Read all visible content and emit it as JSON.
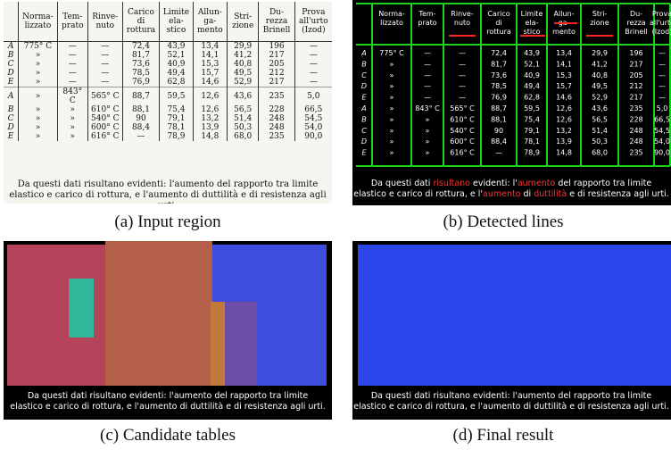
{
  "table": {
    "headers": [
      "",
      "Norma-\nlizzato",
      "Tem-\nprato",
      "Rinve-\nnuto",
      "Carico\ndi\nrottura",
      "Limite\nela-\nstico",
      "Allun-\nga-\nmento",
      "Stri-\nzione",
      "Du-\nrezza\nBrinell",
      "Prova\nall'urto\n(Izod)"
    ],
    "rows": [
      [
        "A",
        "775° C",
        "—",
        "—",
        "72,4",
        "43,9",
        "13,4",
        "29,9",
        "196",
        "—"
      ],
      [
        "B",
        "»",
        "—",
        "—",
        "81,7",
        "52,1",
        "14,1",
        "41,2",
        "217",
        "—"
      ],
      [
        "C",
        "»",
        "—",
        "—",
        "73,6",
        "40,9",
        "15,3",
        "40,8",
        "205",
        "—"
      ],
      [
        "D",
        "»",
        "—",
        "—",
        "78,5",
        "49,4",
        "15,7",
        "49,5",
        "212",
        "—"
      ],
      [
        "E",
        "»",
        "—",
        "—",
        "76,9",
        "62,8",
        "14,6",
        "52,9",
        "217",
        "—"
      ],
      [
        "A",
        "»",
        "843° C",
        "565° C",
        "88,7",
        "59,5",
        "12,6",
        "43,6",
        "235",
        "5,0"
      ],
      [
        "B",
        "»",
        "»",
        "610° C",
        "88,1",
        "75,4",
        "12,6",
        "56,5",
        "228",
        "66,5"
      ],
      [
        "C",
        "»",
        "»",
        "540° C",
        "90",
        "79,1",
        "13,2",
        "51,4",
        "248",
        "54,5"
      ],
      [
        "D",
        "»",
        "»",
        "600° C",
        "88,4",
        "78,1",
        "13,9",
        "50,3",
        "248",
        "54,0"
      ],
      [
        "E",
        "»",
        "»",
        "616° C",
        "—",
        "78,9",
        "14,8",
        "68,0",
        "235",
        "90,0"
      ]
    ],
    "note_line1": "Da questi dati risultano evidenti: l'aumento del rapporto tra limite",
    "note_line2": "elastico e carico di rottura, e l'aumento di duttilità e di resistenza agli urti."
  },
  "captions": {
    "a": "(a) Input region",
    "b": "(b) Detected lines",
    "c": "(c) Candidate tables",
    "d": "(d) Final result"
  },
  "footer_words": {
    "part1": "Da questi dati ",
    "hl1": "risultano",
    "part2": " evidenti: l'",
    "hl2": "aumento",
    "part3": " del rapporto tra limite",
    "line2a": "elastico e carico di rottura, e l'",
    "hl3": "aumento",
    "line2b": " di ",
    "hl4": "duttilità",
    "line2c": " e di resistenza agli urti."
  },
  "colors": {
    "candidate_red": "#b5435a",
    "candidate_orange": "#b46048",
    "candidate_teal": "#2fb79a",
    "candidate_purple": "#6e4fa8",
    "candidate_blue": "#3f4ddf",
    "final_blue": "#2a45ea",
    "line_green": "#1fd11f",
    "line_red": "#ff2020"
  }
}
